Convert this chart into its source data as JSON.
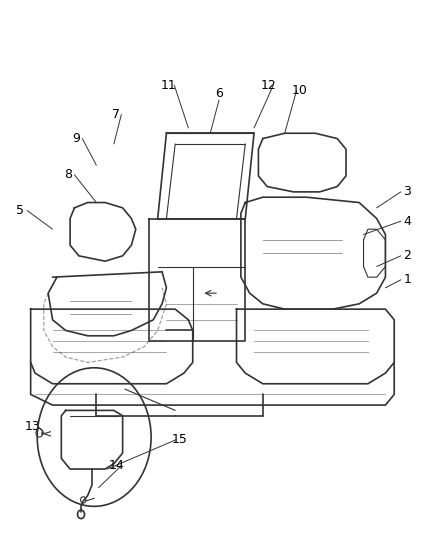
{
  "background_color": "#ffffff",
  "title": "",
  "figsize": [
    4.38,
    5.33
  ],
  "dpi": 100,
  "font_size": 9,
  "line_color": "#333333",
  "label_color": "#000000"
}
